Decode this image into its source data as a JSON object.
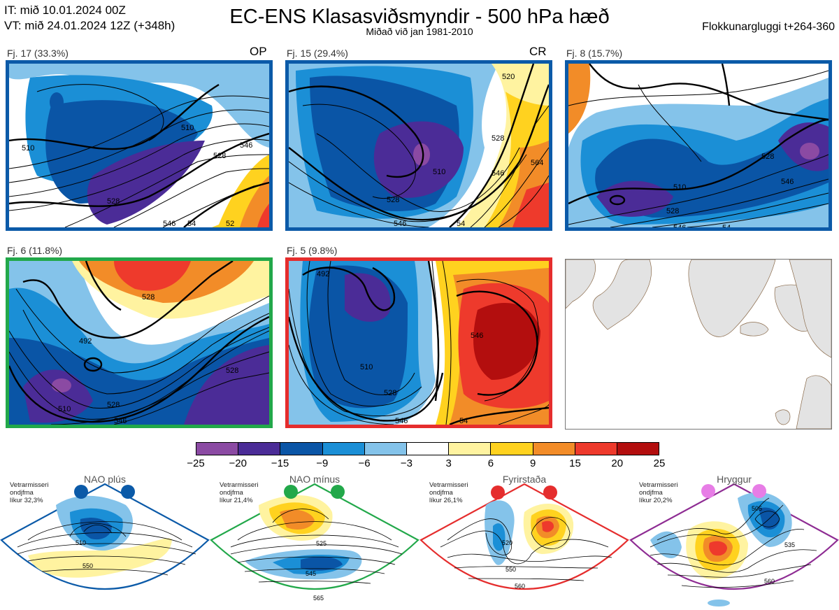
{
  "header": {
    "it_line": "IT: mið 10.01.2024 00Z",
    "vt_line": "VT: mið 24.01.2024 12Z  (+348h)",
    "title": "EC-ENS Klasasviðsmyndir - 500 hPa hæð",
    "subtitle": "Miðað við jan 1981-2010",
    "window": "Flokkunargluggi t+264-360"
  },
  "clusters": [
    {
      "label": "Fj. 17 (33.3%)",
      "tag": "OP",
      "frame_color": "#0b5aa8",
      "contour_labels": [
        "510",
        "510",
        "528",
        "528",
        "546",
        "546",
        "54",
        "52"
      ]
    },
    {
      "label": "Fj. 15 (29.4%)",
      "tag": "CR",
      "frame_color": "#0b5aa8",
      "contour_labels": [
        "510",
        "528",
        "528",
        "546",
        "546",
        "564",
        "520",
        "54"
      ]
    },
    {
      "label": "Fj. 8 (15.7%)",
      "tag": "",
      "frame_color": "#0b5aa8",
      "contour_labels": [
        "510",
        "528",
        "528",
        "546",
        "546",
        "54"
      ]
    },
    {
      "label": "Fj. 6 (11.8%)",
      "tag": "",
      "frame_color": "#22a84a",
      "contour_labels": [
        "492",
        "510",
        "528",
        "528",
        "546",
        "528"
      ]
    },
    {
      "label": "Fj. 5 (9.8%)",
      "tag": "",
      "frame_color": "#e52d2d",
      "contour_labels": [
        "492",
        "510",
        "528",
        "546",
        "546",
        "54"
      ]
    }
  ],
  "colorbar": {
    "ticks": [
      "−25",
      "−20",
      "−15",
      "−9",
      "−6",
      "−3",
      "3",
      "6",
      "9",
      "15",
      "20",
      "25"
    ],
    "colors": [
      "#8b4aa3",
      "#4b2c97",
      "#0a55a6",
      "#1b8fd6",
      "#84c3ea",
      "#ffffff",
      "#fff3a0",
      "#ffd21f",
      "#f28c28",
      "#ee3a2c",
      "#b30e0e"
    ]
  },
  "regimes": [
    {
      "name": "NAO plús",
      "note": [
        "Vetrarmisseri",
        "ondjfma",
        "líkur 32,3%"
      ],
      "color": "#0b5aa8",
      "contour_labels": [
        "510",
        "550"
      ]
    },
    {
      "name": "NAO mínus",
      "note": [
        "Vetrarmisseri",
        "ondjfma",
        "líkur 21,4%"
      ],
      "color": "#22a84a",
      "contour_labels": [
        "525",
        "545",
        "565"
      ]
    },
    {
      "name": "Fyrirstaða",
      "note": [
        "Vetrarmisseri",
        "ondjfma",
        "líkur 26,1%"
      ],
      "color": "#e52d2d",
      "contour_labels": [
        "520",
        "550",
        "560"
      ]
    },
    {
      "name": "Hryggur",
      "note": [
        "Vetrarmisseri",
        "ondjfma",
        "líkur 20,2%"
      ],
      "color": "#8e2c93",
      "contour_labels": [
        "505",
        "535",
        "560"
      ]
    }
  ]
}
